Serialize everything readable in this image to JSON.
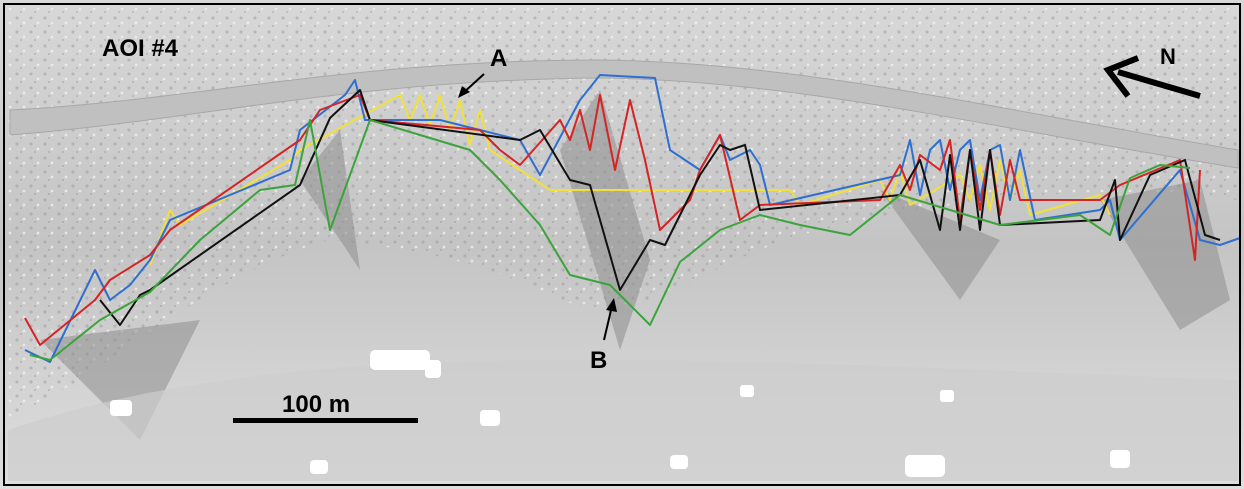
{
  "title": "AOI #4",
  "labels": {
    "a": "A",
    "b": "B",
    "north": "N"
  },
  "scale_bar": "100 m"
}
